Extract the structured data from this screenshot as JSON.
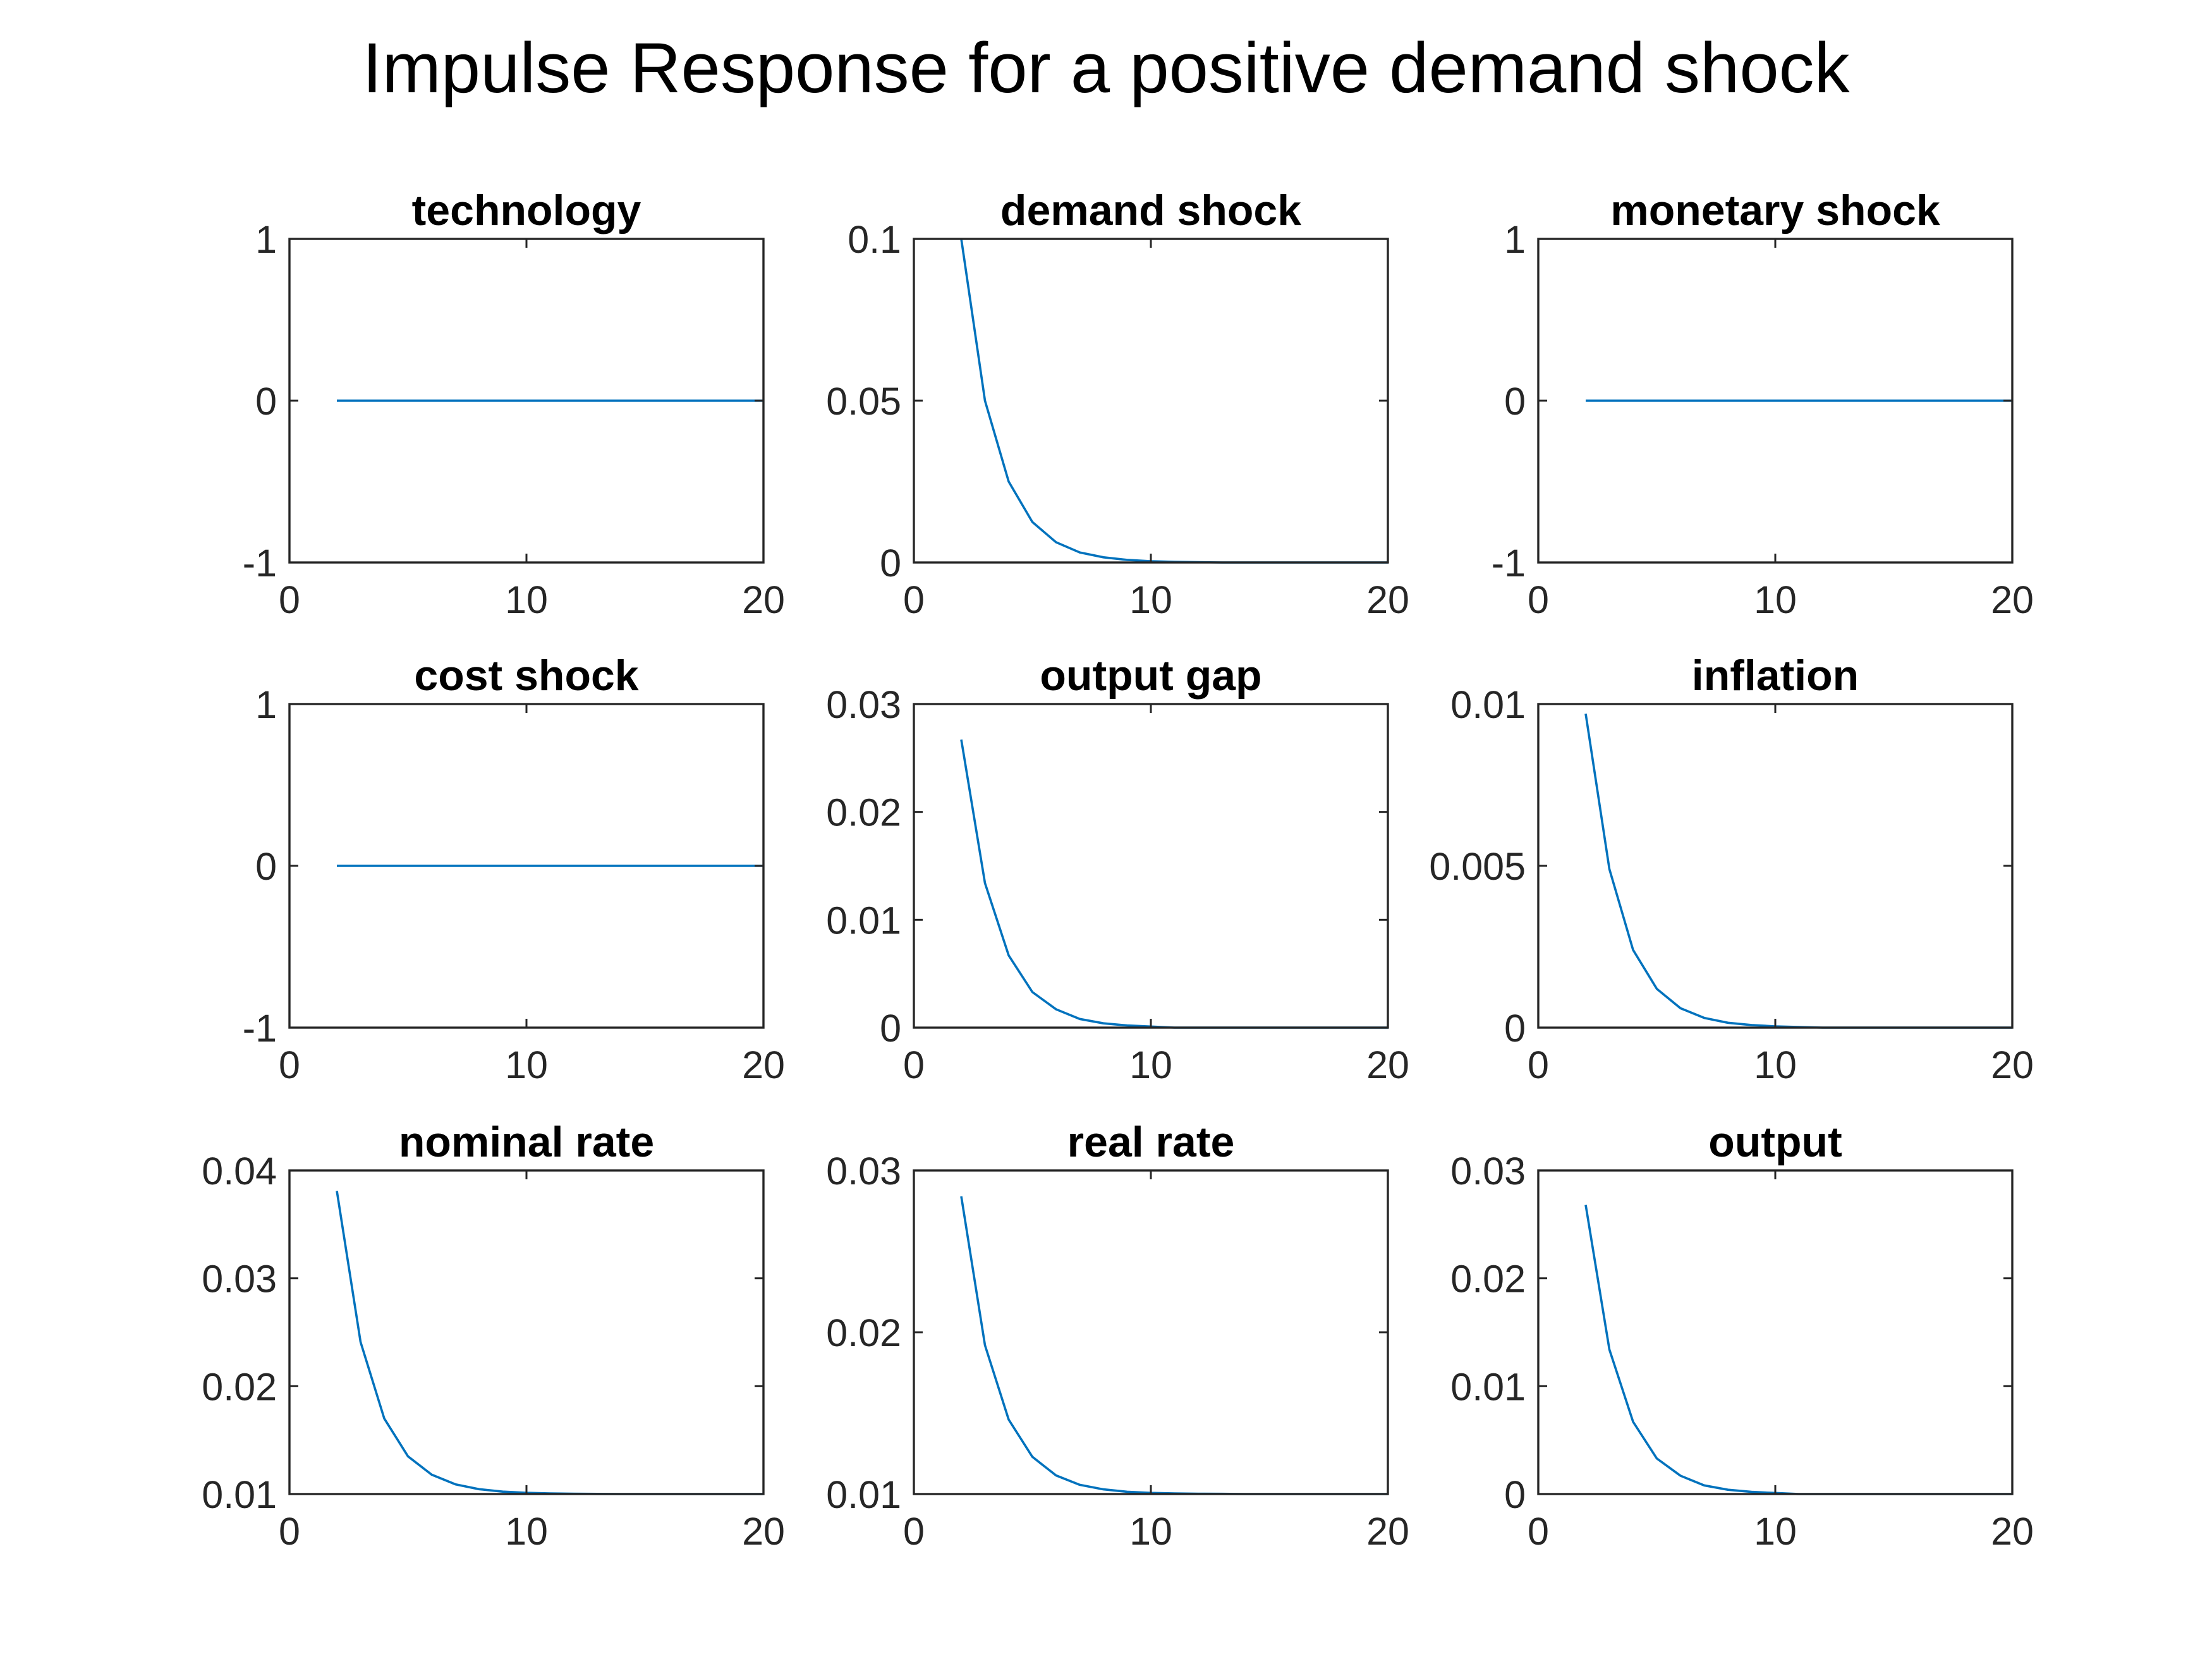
{
  "figure": {
    "title": "Impulse Response for a positive demand shock",
    "line_color": "#0072BD",
    "axes_color": "#262626"
  },
  "chart_data": [
    {
      "type": "line",
      "title": "technology",
      "xlim": [
        0,
        20
      ],
      "ylim": [
        -1,
        1
      ],
      "xticks": [
        0,
        10,
        20
      ],
      "xtick_labels": [
        "0",
        "10",
        "20"
      ],
      "yticks": [
        -1,
        0,
        1
      ],
      "ytick_labels": [
        "-1",
        "0",
        "1"
      ],
      "x": [
        2,
        3,
        4,
        5,
        6,
        7,
        8,
        9,
        10,
        11,
        12,
        13,
        14,
        15,
        16,
        17,
        18,
        19,
        20
      ],
      "y": [
        0,
        0,
        0,
        0,
        0,
        0,
        0,
        0,
        0,
        0,
        0,
        0,
        0,
        0,
        0,
        0,
        0,
        0,
        0
      ]
    },
    {
      "type": "line",
      "title": "demand shock",
      "xlim": [
        0,
        20
      ],
      "ylim": [
        0,
        0.1
      ],
      "xticks": [
        0,
        10,
        20
      ],
      "xtick_labels": [
        "0",
        "10",
        "20"
      ],
      "yticks": [
        0,
        0.05,
        0.1
      ],
      "ytick_labels": [
        "0",
        "0.05",
        "0.1"
      ],
      "x": [
        2,
        3,
        4,
        5,
        6,
        7,
        8,
        9,
        10,
        11,
        12,
        13,
        14,
        15,
        16,
        17,
        18,
        19,
        20
      ],
      "y": [
        0.1,
        0.05,
        0.025,
        0.0125,
        0.00625,
        0.0031,
        0.0016,
        0.0008,
        0.0004,
        0.0002,
        0.0001,
        0,
        0,
        0,
        0,
        0,
        0,
        0,
        0
      ]
    },
    {
      "type": "line",
      "title": "monetary shock",
      "xlim": [
        0,
        20
      ],
      "ylim": [
        -1,
        1
      ],
      "xticks": [
        0,
        10,
        20
      ],
      "xtick_labels": [
        "0",
        "10",
        "20"
      ],
      "yticks": [
        -1,
        0,
        1
      ],
      "ytick_labels": [
        "-1",
        "0",
        "1"
      ],
      "x": [
        2,
        3,
        4,
        5,
        6,
        7,
        8,
        9,
        10,
        11,
        12,
        13,
        14,
        15,
        16,
        17,
        18,
        19,
        20
      ],
      "y": [
        0,
        0,
        0,
        0,
        0,
        0,
        0,
        0,
        0,
        0,
        0,
        0,
        0,
        0,
        0,
        0,
        0,
        0,
        0
      ]
    },
    {
      "type": "line",
      "title": "cost shock",
      "xlim": [
        0,
        20
      ],
      "ylim": [
        -1,
        1
      ],
      "xticks": [
        0,
        10,
        20
      ],
      "xtick_labels": [
        "0",
        "10",
        "20"
      ],
      "yticks": [
        -1,
        0,
        1
      ],
      "ytick_labels": [
        "-1",
        "0",
        "1"
      ],
      "x": [
        2,
        3,
        4,
        5,
        6,
        7,
        8,
        9,
        10,
        11,
        12,
        13,
        14,
        15,
        16,
        17,
        18,
        19,
        20
      ],
      "y": [
        0,
        0,
        0,
        0,
        0,
        0,
        0,
        0,
        0,
        0,
        0,
        0,
        0,
        0,
        0,
        0,
        0,
        0,
        0
      ]
    },
    {
      "type": "line",
      "title": "output gap",
      "xlim": [
        0,
        20
      ],
      "ylim": [
        0,
        0.03
      ],
      "xticks": [
        0,
        10,
        20
      ],
      "xtick_labels": [
        "0",
        "10",
        "20"
      ],
      "yticks": [
        0,
        0.01,
        0.02,
        0.03
      ],
      "ytick_labels": [
        "0",
        "0.01",
        "0.02",
        "0.03"
      ],
      "x": [
        2,
        3,
        4,
        5,
        6,
        7,
        8,
        9,
        10,
        11,
        12,
        13,
        14,
        15,
        16,
        17,
        18,
        19,
        20
      ],
      "y": [
        0.0267,
        0.0134,
        0.0067,
        0.0033,
        0.0017,
        0.0008,
        0.0004,
        0.0002,
        0.0001,
        0,
        0,
        0,
        0,
        0,
        0,
        0,
        0,
        0,
        0
      ]
    },
    {
      "type": "line",
      "title": "inflation",
      "xlim": [
        0,
        20
      ],
      "ylim": [
        0,
        0.01
      ],
      "xticks": [
        0,
        10,
        20
      ],
      "xtick_labels": [
        "0",
        "10",
        "20"
      ],
      "yticks": [
        0,
        0.005,
        0.01
      ],
      "ytick_labels": [
        "0",
        "0.005",
        "0.01"
      ],
      "x": [
        2,
        3,
        4,
        5,
        6,
        7,
        8,
        9,
        10,
        11,
        12,
        13,
        14,
        15,
        16,
        17,
        18,
        19,
        20
      ],
      "y": [
        0.0097,
        0.0049,
        0.0024,
        0.0012,
        0.0006,
        0.0003,
        0.00015,
        8e-05,
        4e-05,
        2e-05,
        0,
        0,
        0,
        0,
        0,
        0,
        0,
        0,
        0
      ]
    },
    {
      "type": "line",
      "title": "nominal rate",
      "xlim": [
        0,
        20
      ],
      "ylim": [
        0.01,
        0.04
      ],
      "xticks": [
        0,
        10,
        20
      ],
      "xtick_labels": [
        "0",
        "10",
        "20"
      ],
      "yticks": [
        0.01,
        0.02,
        0.03,
        0.04
      ],
      "ytick_labels": [
        "0.01",
        "0.02",
        "0.03",
        "0.04"
      ],
      "x": [
        2,
        3,
        4,
        5,
        6,
        7,
        8,
        9,
        10,
        11,
        12,
        13,
        14,
        15,
        16,
        17,
        18,
        19,
        20
      ],
      "y": [
        0.0381,
        0.0241,
        0.017,
        0.0135,
        0.0118,
        0.0109,
        0.01045,
        0.01022,
        0.01011,
        0.01006,
        0.01003,
        0.01001,
        0.01,
        0.01,
        0.01,
        0.01,
        0.01,
        0.01,
        0.01
      ]
    },
    {
      "type": "line",
      "title": "real rate",
      "xlim": [
        0,
        20
      ],
      "ylim": [
        0.01,
        0.03
      ],
      "xticks": [
        0,
        10,
        20
      ],
      "xtick_labels": [
        "0",
        "10",
        "20"
      ],
      "yticks": [
        0.01,
        0.02,
        0.03
      ],
      "ytick_labels": [
        "0.01",
        "0.02",
        "0.03"
      ],
      "x": [
        2,
        3,
        4,
        5,
        6,
        7,
        8,
        9,
        10,
        11,
        12,
        13,
        14,
        15,
        16,
        17,
        18,
        19,
        20
      ],
      "y": [
        0.0284,
        0.0192,
        0.0146,
        0.0123,
        0.01115,
        0.01057,
        0.01029,
        0.01014,
        0.01007,
        0.01004,
        0.01002,
        0.01001,
        0.01,
        0.01,
        0.01,
        0.01,
        0.01,
        0.01,
        0.01
      ]
    },
    {
      "type": "line",
      "title": "output",
      "xlim": [
        0,
        20
      ],
      "ylim": [
        0,
        0.03
      ],
      "xticks": [
        0,
        10,
        20
      ],
      "xtick_labels": [
        "0",
        "10",
        "20"
      ],
      "yticks": [
        0,
        0.01,
        0.02,
        0.03
      ],
      "ytick_labels": [
        "0",
        "0.01",
        "0.02",
        "0.03"
      ],
      "x": [
        2,
        3,
        4,
        5,
        6,
        7,
        8,
        9,
        10,
        11,
        12,
        13,
        14,
        15,
        16,
        17,
        18,
        19,
        20
      ],
      "y": [
        0.0268,
        0.0134,
        0.0067,
        0.0033,
        0.0017,
        0.0008,
        0.0004,
        0.0002,
        0.0001,
        0,
        0,
        0,
        0,
        0,
        0,
        0,
        0,
        0,
        0
      ]
    }
  ]
}
